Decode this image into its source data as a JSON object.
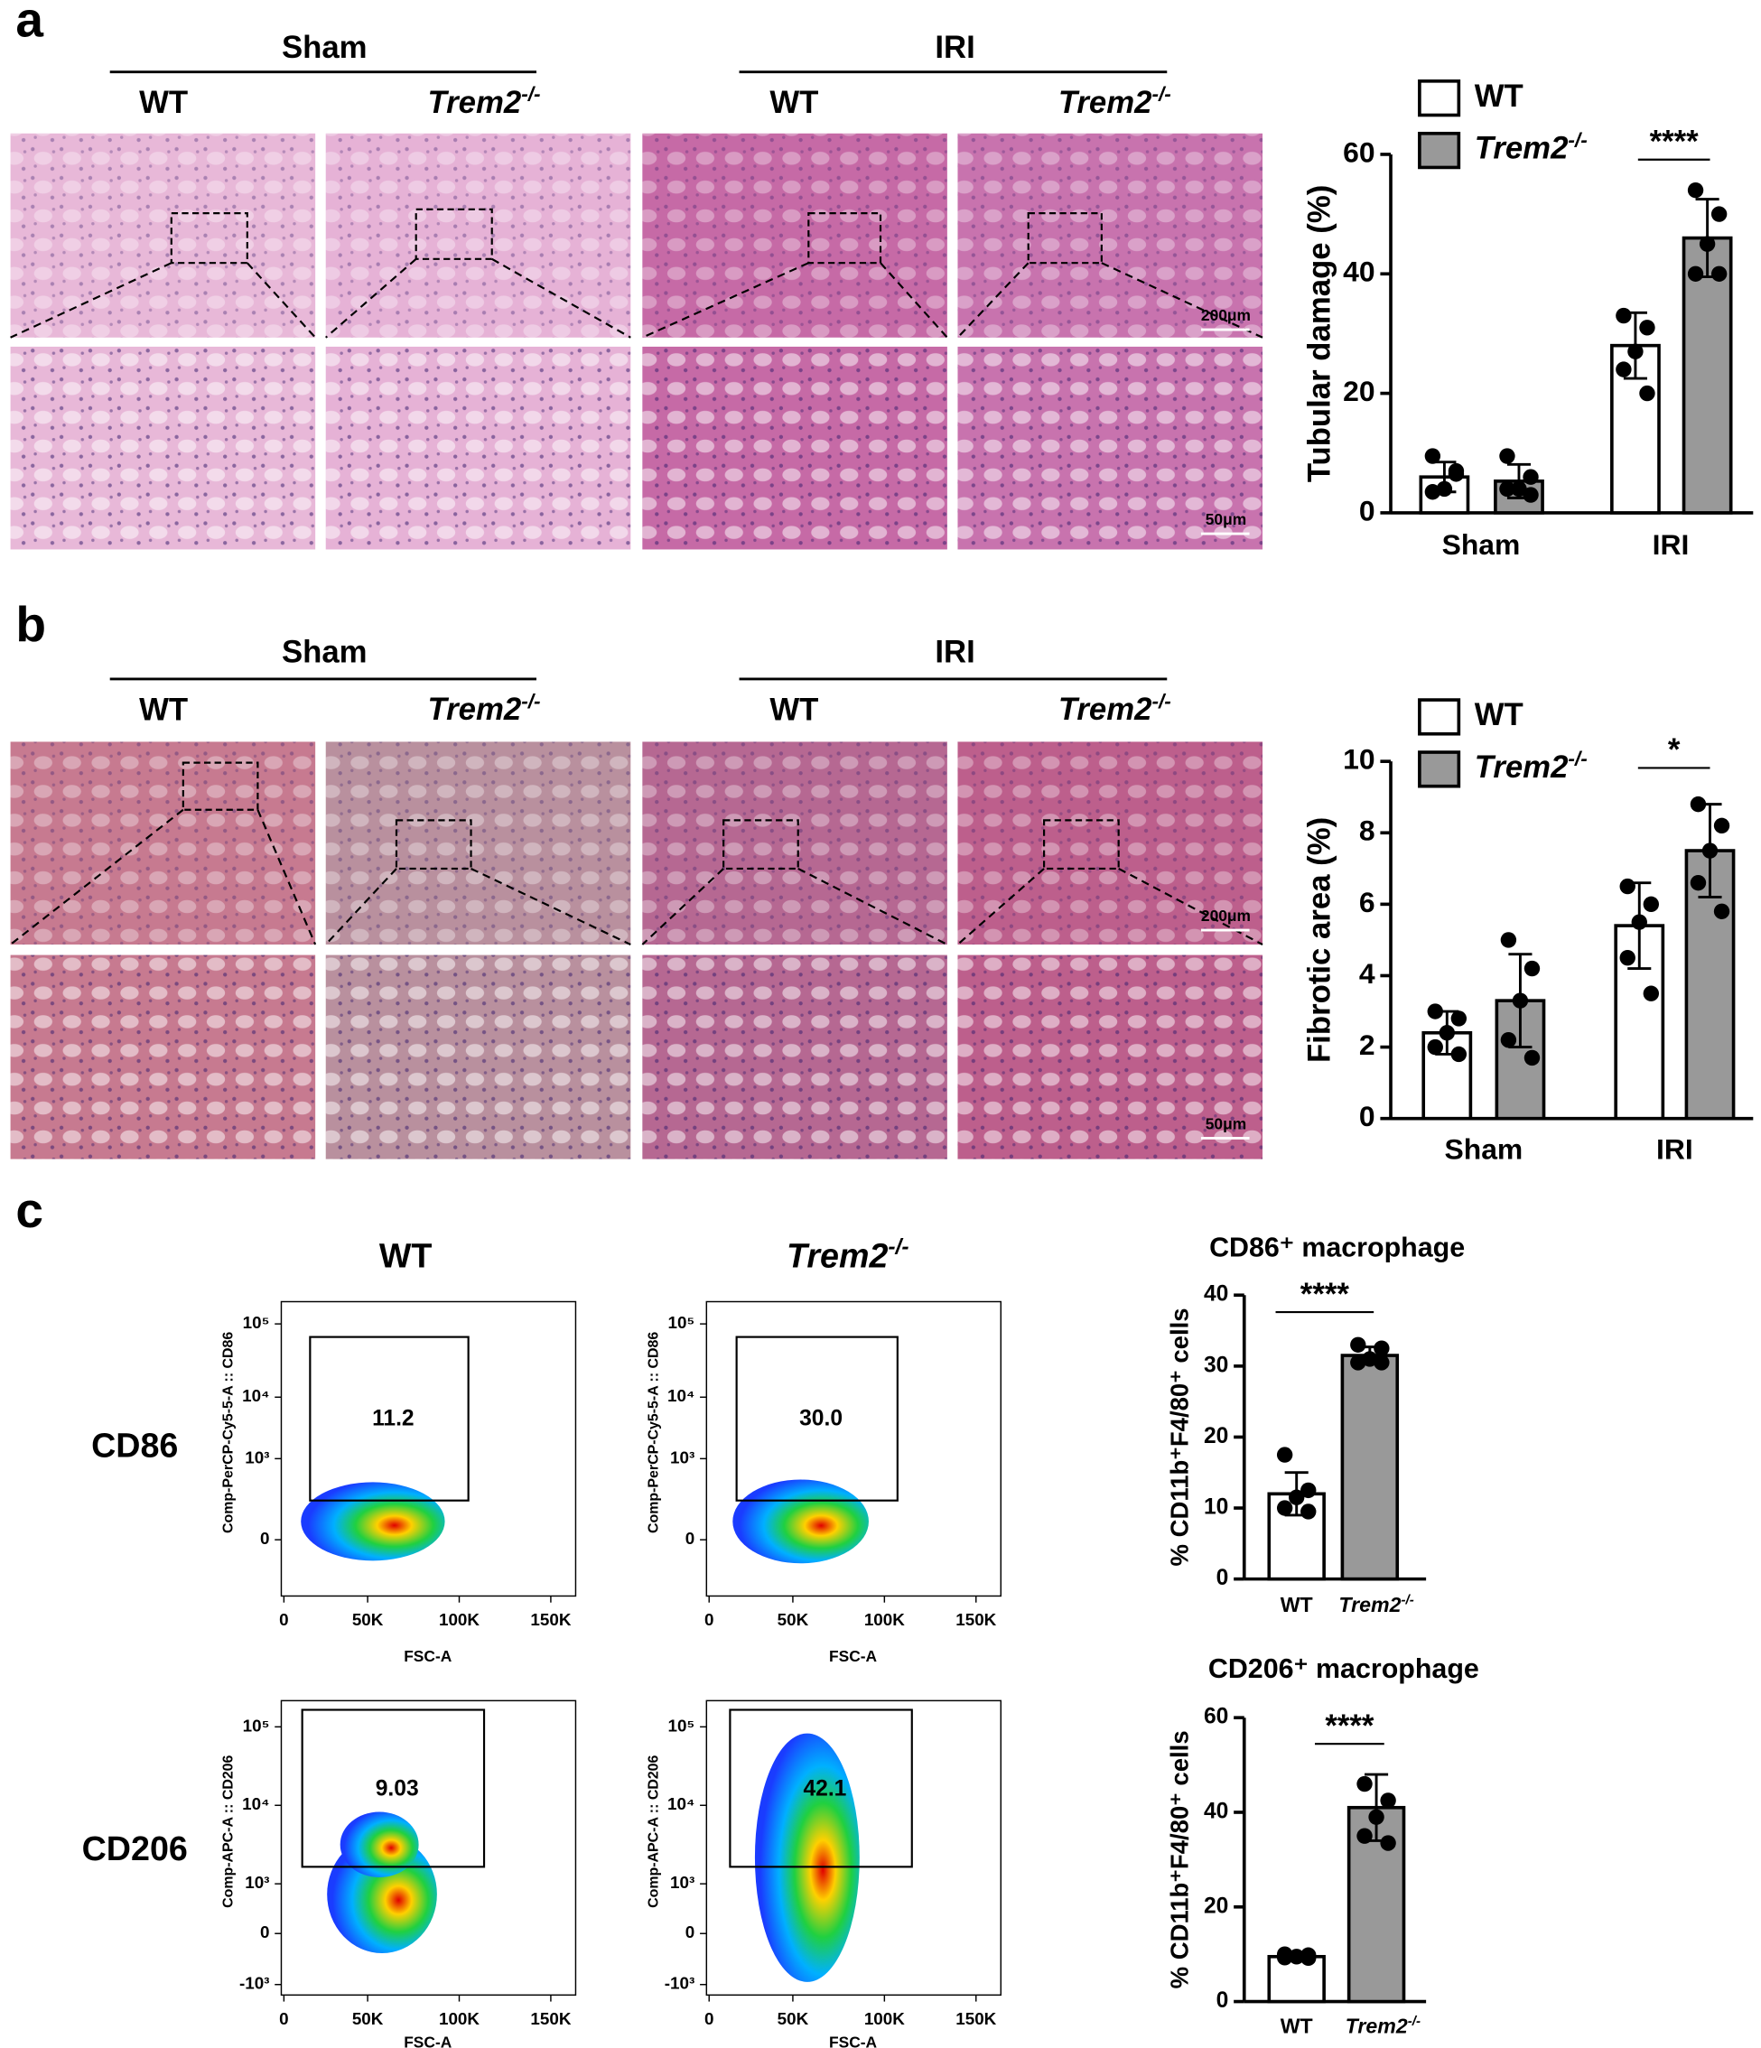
{
  "figure": {
    "panel_labels": [
      "a",
      "b",
      "c"
    ],
    "histology": [
      {
        "group_labels": [
          "Sham",
          "IRI"
        ],
        "genotype_labels": [
          "WT",
          "Trem2-/-",
          "WT",
          "Trem2-/-"
        ],
        "scale_bars": [
          "200μm",
          "50μm"
        ]
      },
      {
        "group_labels": [
          "Sham",
          "IRI"
        ],
        "genotype_labels": [
          "WT",
          "Trem2-/-",
          "WT",
          "Trem2-/-"
        ],
        "scale_bars": [
          "200μm",
          "50μm"
        ]
      }
    ],
    "flow": {
      "column_labels": [
        "WT",
        "Trem2-/-"
      ],
      "x_axis_label": "FSC-A",
      "xticks": [
        "0",
        "50K",
        "100K",
        "150K"
      ],
      "rows": [
        {
          "label": "CD86",
          "y_axis_label": "Comp-PerCP-Cy5-5-A :: CD86",
          "yticks": [
            "10⁵",
            "10⁴",
            "10³",
            "0"
          ],
          "gates": [
            "11.2",
            "30.0"
          ]
        },
        {
          "label": "CD206",
          "y_axis_label": "Comp-APC-A :: CD206",
          "yticks": [
            "10⁵",
            "10⁴",
            "10³",
            "0",
            "-10³"
          ],
          "gates": [
            "9.03",
            "42.1"
          ]
        }
      ]
    }
  },
  "chart_data": [
    {
      "type": "bar",
      "y_label": "Tubular damage (%)",
      "categories": [
        "Sham",
        "IRI"
      ],
      "series": [
        {
          "name": "WT",
          "color": "#ffffff",
          "values": [
            6,
            28
          ],
          "errors": [
            2.5,
            5.5
          ],
          "points": [
            [
              9.5,
              7,
              4,
              3.5,
              6.5
            ],
            [
              33,
              31,
              27,
              24,
              20
            ]
          ]
        },
        {
          "name": "Trem2-/-",
          "color": "#999999",
          "values": [
            5.3,
            46
          ],
          "errors": [
            2.8,
            6.5
          ],
          "points": [
            [
              9.5,
              6,
              4,
              4,
              3
            ],
            [
              54,
              50,
              45,
              40,
              40
            ]
          ]
        }
      ],
      "ylim": [
        0,
        60
      ],
      "yticks": [
        0,
        20,
        40,
        60
      ],
      "annotations": [
        "****"
      ]
    },
    {
      "type": "bar",
      "y_label": "Fibrotic area (%)",
      "categories": [
        "Sham",
        "IRI"
      ],
      "series": [
        {
          "name": "WT",
          "color": "#ffffff",
          "values": [
            2.4,
            5.4
          ],
          "errors": [
            0.6,
            1.2
          ],
          "points": [
            [
              3,
              2.8,
              2.4,
              2.0,
              1.8
            ],
            [
              6.5,
              6.0,
              5.5,
              4.5,
              3.5
            ]
          ]
        },
        {
          "name": "Trem2-/-",
          "color": "#999999",
          "values": [
            3.3,
            7.5
          ],
          "errors": [
            1.3,
            1.3
          ],
          "points": [
            [
              5,
              4.2,
              3.3,
              2.2,
              1.7
            ],
            [
              8.8,
              8.2,
              7.5,
              6.6,
              5.8
            ]
          ]
        }
      ],
      "ylim": [
        0,
        10
      ],
      "yticks": [
        0,
        2,
        4,
        6,
        8,
        10
      ],
      "annotations": [
        "*"
      ]
    },
    {
      "type": "bar",
      "title": "CD86⁺ macrophage",
      "y_label": "% CD11b⁺F4/80⁺ cells",
      "categories": [
        "WT",
        "Trem2-/-"
      ],
      "colors": [
        "#ffffff",
        "#999999"
      ],
      "values": [
        12,
        31.5
      ],
      "errors": [
        3,
        1.2
      ],
      "points": [
        [
          17.5,
          12.5,
          11.5,
          10,
          9.5
        ],
        [
          33,
          32.5,
          31,
          30.5,
          30.5
        ]
      ],
      "ylim": [
        0,
        40
      ],
      "yticks": [
        0,
        10,
        20,
        30,
        40
      ],
      "annotations": [
        "****"
      ]
    },
    {
      "type": "bar",
      "title": "CD206⁺ macrophage",
      "y_label": "% CD11b⁺F4/80⁺ cells",
      "categories": [
        "WT",
        "Trem2-/-"
      ],
      "colors": [
        "#ffffff",
        "#999999"
      ],
      "values": [
        9.5,
        41
      ],
      "errors": [
        0.5,
        7
      ],
      "points": [
        [
          10,
          9.8,
          9.5,
          9.3,
          9.2
        ],
        [
          46,
          42.5,
          39,
          35,
          33.5
        ]
      ],
      "ylim": [
        0,
        60
      ],
      "yticks": [
        0,
        20,
        40,
        60
      ],
      "annotations": [
        "****"
      ]
    }
  ]
}
